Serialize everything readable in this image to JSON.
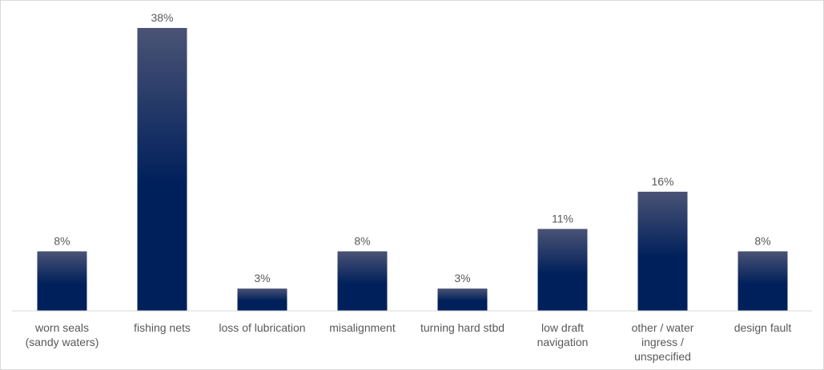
{
  "chart_data": {
    "type": "bar",
    "title": "",
    "xlabel": "",
    "ylabel": "",
    "categories": [
      "worn seals (sandy waters)",
      "fishing nets",
      "loss of lubrication",
      "misalignment",
      "turning hard stbd",
      "low draft navigation",
      "other / water ingress / unspecified",
      "design fault"
    ],
    "category_lines": [
      [
        "worn seals",
        "(sandy waters)"
      ],
      [
        "fishing nets"
      ],
      [
        "loss of lubrication"
      ],
      [
        "misalignment"
      ],
      [
        "turning hard stbd"
      ],
      [
        "low draft",
        "navigation"
      ],
      [
        "other / water",
        "ingress /",
        "unspecified"
      ],
      [
        "design fault"
      ]
    ],
    "values": [
      8,
      38,
      3,
      8,
      3,
      11,
      16,
      8
    ],
    "data_labels": [
      "8%",
      "38%",
      "3%",
      "8%",
      "3%",
      "11%",
      "16%",
      "8%"
    ],
    "unit": "%",
    "ylim": [
      0,
      38
    ],
    "grid": false,
    "legend": "none",
    "colors": {
      "bar_top": "#4a5375",
      "bar_bottom": "#00205b",
      "axis": "#d9d9d9",
      "label": "#595959"
    }
  }
}
